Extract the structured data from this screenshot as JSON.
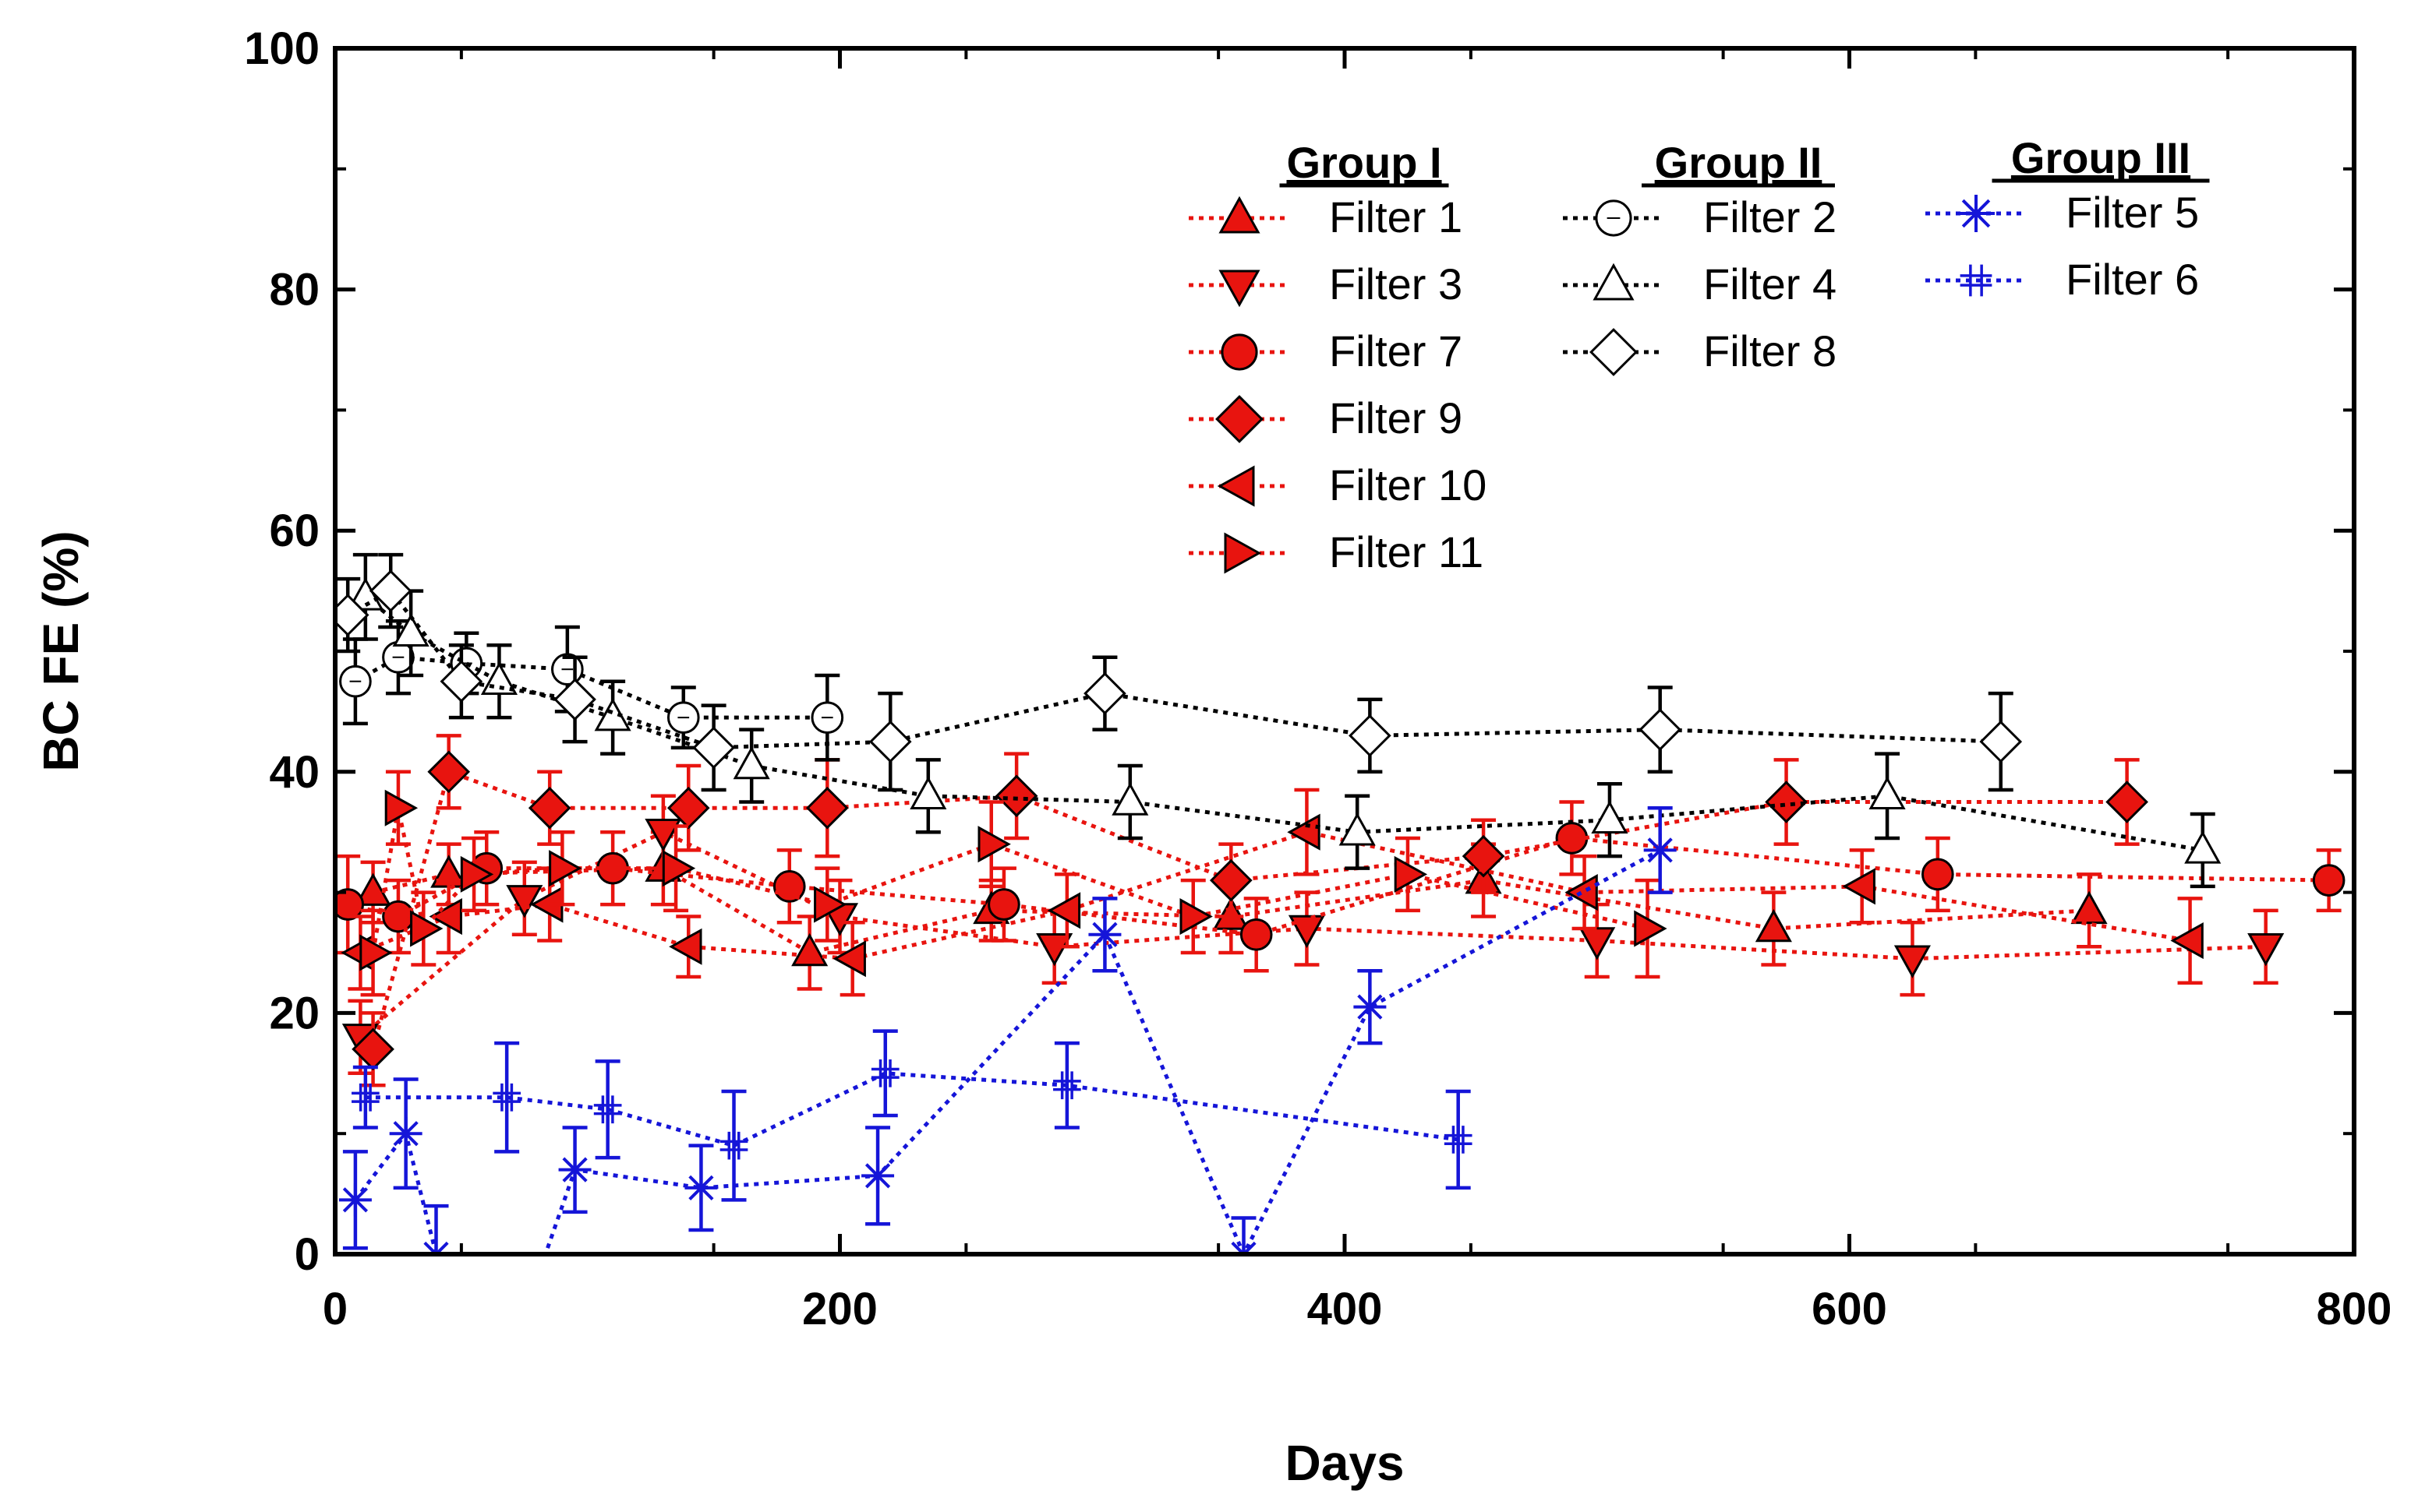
{
  "chart_data": {
    "type": "scatter",
    "title": "",
    "xlabel": "Days",
    "ylabel": "BC FE (%)",
    "xlim": [
      0,
      800
    ],
    "ylim": [
      0,
      100
    ],
    "xticks": [
      "0",
      "200",
      "400",
      "600",
      "800"
    ],
    "yticks": [
      "0",
      "20",
      "40",
      "60",
      "80",
      "100"
    ],
    "grid": false,
    "legend_placement": "top-right",
    "groups": [
      {
        "name": "Group I",
        "series": [
          "Filter 1",
          "Filter 3",
          "Filter 7",
          "Filter 9",
          "Filter 10",
          "Filter 11"
        ]
      },
      {
        "name": "Group II",
        "series": [
          "Filter 2",
          "Filter 4",
          "Filter 8"
        ]
      },
      {
        "name": "Group III",
        "series": [
          "Filter 5",
          "Filter 6"
        ]
      }
    ],
    "series": [
      {
        "name": "Filter 1",
        "group": "Group I",
        "color": "#e8140f",
        "marker": "triangle-up",
        "filled": true,
        "x": [
          15,
          45,
          130,
          188,
          260,
          355,
          455,
          570,
          695
        ],
        "y": [
          30,
          31.5,
          32,
          25,
          28.5,
          28,
          31,
          27,
          28.5
        ],
        "err": [
          2.5,
          2.5,
          3,
          3,
          2.5,
          3,
          3,
          3,
          3
        ]
      },
      {
        "name": "Filter 3",
        "group": "Group I",
        "color": "#e8140f",
        "marker": "triangle-down",
        "filled": true,
        "x": [
          10,
          75,
          130,
          200,
          285,
          385,
          500,
          625,
          765
        ],
        "y": [
          18,
          29.5,
          35,
          28,
          25.5,
          27,
          26,
          24.5,
          25.5
        ],
        "err": [
          3,
          3,
          3,
          3,
          3,
          3,
          3,
          3,
          3
        ]
      },
      {
        "name": "Filter 7",
        "group": "Group I",
        "color": "#e8140f",
        "marker": "circle",
        "filled": true,
        "x": [
          5,
          25,
          60,
          110,
          180,
          265,
          365,
          490,
          635,
          790
        ],
        "y": [
          29,
          28,
          32,
          32,
          30.5,
          29,
          26.5,
          34.5,
          31.5,
          31
        ],
        "err": [
          4,
          3,
          3,
          3,
          3,
          3,
          3,
          3,
          3,
          2.5
        ]
      },
      {
        "name": "Filter 9",
        "group": "Group I",
        "color": "#e8140f",
        "marker": "diamond",
        "filled": true,
        "x": [
          15,
          45,
          85,
          140,
          195,
          270,
          355,
          455,
          575,
          710
        ],
        "y": [
          17,
          40,
          37,
          37,
          37,
          38,
          31,
          33,
          37.5,
          37.5
        ],
        "err": [
          3,
          3,
          3,
          3.5,
          4,
          3.5,
          3,
          3,
          3.5,
          3.5
        ]
      },
      {
        "name": "Filter 10",
        "group": "Group I",
        "color": "#e8140f",
        "marker": "triangle-left",
        "filled": true,
        "x": [
          10,
          45,
          85,
          140,
          205,
          290,
          385,
          495,
          605,
          735
        ],
        "y": [
          25,
          28,
          29,
          25.5,
          24.5,
          28.5,
          35,
          30,
          30.5,
          26
        ],
        "err": [
          3,
          3,
          3,
          2.5,
          3,
          3,
          3.5,
          3,
          3,
          3.5
        ]
      },
      {
        "name": "Filter 11",
        "group": "Group I",
        "color": "#e8140f",
        "marker": "triangle-right",
        "filled": true,
        "x": [
          15,
          25,
          35,
          55,
          90,
          135,
          195,
          260,
          340,
          425,
          520
        ],
        "y": [
          25,
          37,
          27,
          31.5,
          32,
          32,
          29,
          34,
          28,
          31.5,
          27
        ],
        "err": [
          3.5,
          3,
          3,
          3,
          3,
          3.5,
          3,
          3.5,
          3,
          3,
          4
        ]
      },
      {
        "name": "Filter 2",
        "group": "Group II",
        "color": "#000000",
        "marker": "circle",
        "filled": false,
        "x": [
          8,
          25,
          52,
          92,
          138,
          195
        ],
        "y": [
          47.5,
          49.5,
          49,
          48.5,
          44.5,
          44.5
        ],
        "err": [
          3.5,
          3,
          2.5,
          3.5,
          2.5,
          3.5
        ]
      },
      {
        "name": "Filter 4",
        "group": "Group II",
        "color": "#000000",
        "marker": "triangle-up",
        "filled": false,
        "x": [
          12,
          30,
          65,
          110,
          165,
          235,
          315,
          405,
          505,
          615,
          740
        ],
        "y": [
          54.5,
          51.5,
          47.5,
          44.5,
          40.5,
          38,
          37.5,
          35,
          36,
          38,
          33.5
        ],
        "err": [
          3.5,
          3.5,
          3,
          3,
          3,
          3,
          3,
          3,
          3,
          3.5,
          3
        ]
      },
      {
        "name": "Filter 8",
        "group": "Group II",
        "color": "#000000",
        "marker": "diamond",
        "filled": false,
        "x": [
          5,
          22,
          50,
          95,
          150,
          220,
          305,
          410,
          525,
          660
        ],
        "y": [
          53,
          55,
          47.5,
          46,
          42,
          42.5,
          46.5,
          43,
          43.5,
          42.5
        ],
        "err": [
          3,
          3,
          3,
          3.5,
          3.5,
          4,
          3,
          3,
          3.5,
          4
        ]
      },
      {
        "name": "Filter 5",
        "group": "Group III",
        "color": "#1515d8",
        "marker": "asterisk",
        "filled": false,
        "x": [
          8,
          28,
          40,
          75,
          95,
          145,
          215,
          305,
          360,
          410,
          525
        ],
        "y": [
          4.5,
          10,
          0,
          -5,
          7,
          5.5,
          6.5,
          26.5,
          0,
          20.5,
          33.5
        ],
        "err": [
          4,
          4.5,
          4,
          4,
          3.5,
          3.5,
          4,
          3,
          3,
          3,
          3.5
        ]
      },
      {
        "name": "Filter 6",
        "group": "Group III",
        "color": "#1515d8",
        "marker": "hash",
        "filled": false,
        "x": [
          12,
          68,
          108,
          158,
          218,
          290,
          445
        ],
        "y": [
          13,
          13,
          12,
          9,
          15,
          14,
          9.5
        ],
        "err": [
          2.5,
          4.5,
          4,
          4.5,
          3.5,
          3.5,
          4
        ]
      }
    ]
  }
}
